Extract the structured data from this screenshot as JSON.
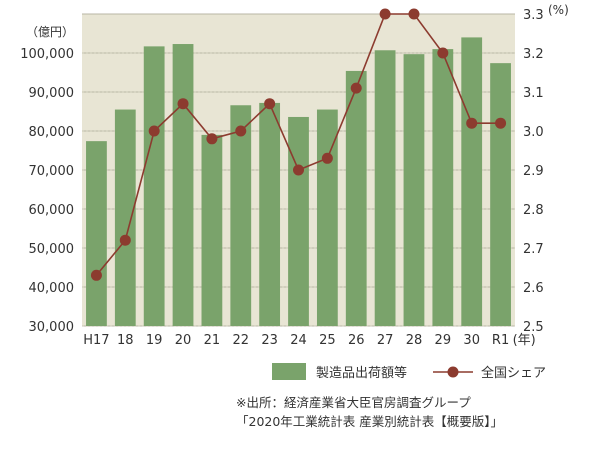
{
  "chart_data": {
    "type": "bar+line",
    "categories": [
      "H17",
      "18",
      "19",
      "20",
      "21",
      "22",
      "23",
      "24",
      "25",
      "26",
      "27",
      "28",
      "29",
      "30",
      "R1"
    ],
    "x_unit": "(年)",
    "series": [
      {
        "name": "製造品出荷額等",
        "type": "bar",
        "axis": "left",
        "color": "#7aa36b",
        "values": [
          77400,
          85500,
          101700,
          102300,
          79000,
          86600,
          87200,
          83600,
          85500,
          95400,
          100700,
          99700,
          101000,
          104000,
          97400
        ]
      },
      {
        "name": "全国シェア",
        "type": "line",
        "axis": "right",
        "color": "#8c3b2f",
        "values": [
          2.63,
          2.72,
          3.0,
          3.07,
          2.98,
          3.0,
          3.07,
          2.9,
          2.93,
          3.11,
          3.3,
          3.3,
          3.2,
          3.02,
          3.02
        ]
      }
    ],
    "y_left": {
      "unit": "（億円）",
      "ylim": [
        30000,
        110000
      ],
      "ticks": [
        30000,
        40000,
        50000,
        60000,
        70000,
        80000,
        90000,
        100000
      ],
      "tick_labels": [
        "30,000",
        "40,000",
        "50,000",
        "60,000",
        "70,000",
        "80,000",
        "90,000",
        "100,000"
      ]
    },
    "y_right": {
      "unit": "(%)",
      "ylim": [
        2.5,
        3.3
      ],
      "ticks": [
        2.5,
        2.6,
        2.7,
        2.8,
        2.9,
        3.0,
        3.1,
        3.2,
        3.3
      ],
      "tick_labels": [
        "2.5",
        "2.6",
        "2.7",
        "2.8",
        "2.9",
        "3.0",
        "3.1",
        "3.2",
        "3.3"
      ]
    },
    "grid": true,
    "legend_position": "bottom"
  },
  "legend": {
    "bar_label": "製造品出荷額等",
    "line_label": "全国シェア"
  },
  "source": {
    "line1": "※出所：経済産業省大臣官房調査グループ",
    "line2": "「2020年工業統計表 産業別統計表【概要版】」"
  },
  "colors": {
    "plot_background": "#e8e5d4",
    "bar": "#7aa36b",
    "line": "#8c3b2f"
  }
}
